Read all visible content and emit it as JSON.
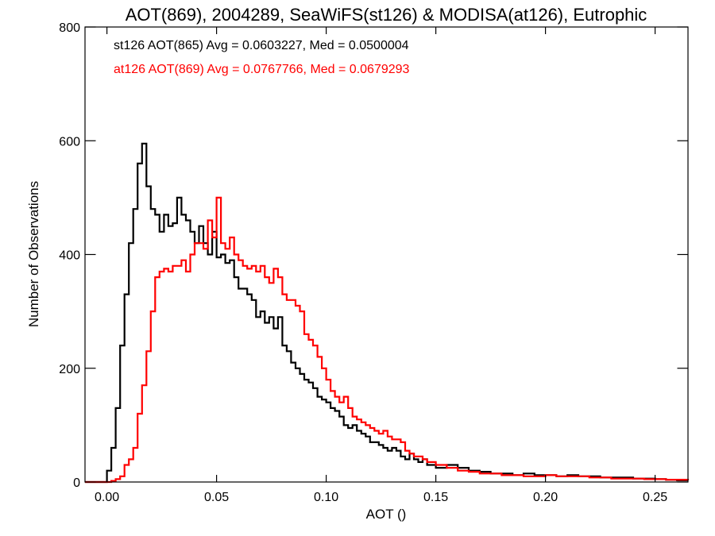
{
  "chart_data": {
    "type": "line",
    "title": "AOT(869), 2004289, SeaWiFS(st126) & MODISA(at126), Eutrophic",
    "xlabel": "AOT ()",
    "ylabel": "Number of Observations",
    "xlim": [
      -0.01,
      0.265
    ],
    "ylim": [
      0,
      800
    ],
    "x_ticks": [
      0.0,
      0.05,
      0.1,
      0.15,
      0.2,
      0.25
    ],
    "x_tick_labels": [
      "0.00",
      "0.05",
      "0.10",
      "0.15",
      "0.20",
      "0.25"
    ],
    "y_ticks": [
      0,
      200,
      400,
      600,
      800
    ],
    "y_tick_labels": [
      "0",
      "200",
      "400",
      "600",
      "800"
    ],
    "grid": false,
    "step": true,
    "annotations": [
      {
        "text": "st126 AOT(865) Avg = 0.0603227, Med = 0.0500004",
        "color": "#000000"
      },
      {
        "text": "at126 AOT(869) Avg = 0.0767766, Med = 0.0679293",
        "color": "#ff0000"
      }
    ],
    "series": [
      {
        "color": "#000000",
        "x": [
          -0.01,
          0.0,
          0.002,
          0.004,
          0.006,
          0.008,
          0.01,
          0.012,
          0.014,
          0.016,
          0.018,
          0.02,
          0.022,
          0.024,
          0.026,
          0.028,
          0.03,
          0.032,
          0.034,
          0.036,
          0.038,
          0.04,
          0.042,
          0.044,
          0.046,
          0.048,
          0.05,
          0.052,
          0.054,
          0.056,
          0.058,
          0.06,
          0.062,
          0.064,
          0.066,
          0.068,
          0.07,
          0.072,
          0.074,
          0.076,
          0.078,
          0.08,
          0.082,
          0.084,
          0.086,
          0.088,
          0.09,
          0.092,
          0.094,
          0.096,
          0.098,
          0.1,
          0.102,
          0.104,
          0.106,
          0.108,
          0.11,
          0.112,
          0.114,
          0.116,
          0.118,
          0.12,
          0.122,
          0.124,
          0.126,
          0.128,
          0.13,
          0.132,
          0.134,
          0.136,
          0.138,
          0.14,
          0.142,
          0.144,
          0.146,
          0.148,
          0.15,
          0.155,
          0.16,
          0.165,
          0.17,
          0.175,
          0.18,
          0.185,
          0.19,
          0.195,
          0.2,
          0.205,
          0.21,
          0.215,
          0.22,
          0.225,
          0.23,
          0.235,
          0.24,
          0.245,
          0.25,
          0.255,
          0.26,
          0.265
        ],
        "y": [
          0,
          20,
          60,
          130,
          240,
          330,
          420,
          480,
          560,
          595,
          520,
          480,
          470,
          440,
          470,
          450,
          455,
          500,
          470,
          460,
          440,
          420,
          450,
          420,
          400,
          440,
          395,
          400,
          385,
          390,
          360,
          340,
          340,
          330,
          320,
          290,
          300,
          280,
          290,
          270,
          290,
          240,
          230,
          210,
          200,
          190,
          180,
          175,
          165,
          150,
          145,
          140,
          130,
          125,
          115,
          100,
          95,
          100,
          90,
          85,
          80,
          70,
          70,
          65,
          60,
          55,
          60,
          55,
          45,
          40,
          50,
          40,
          35,
          40,
          30,
          30,
          25,
          30,
          25,
          20,
          18,
          15,
          15,
          12,
          15,
          12,
          12,
          10,
          12,
          10,
          10,
          8,
          8,
          8,
          6,
          6,
          5,
          4,
          3,
          3
        ]
      },
      {
        "color": "#ff0000",
        "x": [
          -0.01,
          0.0,
          0.002,
          0.004,
          0.006,
          0.008,
          0.01,
          0.012,
          0.014,
          0.016,
          0.018,
          0.02,
          0.022,
          0.024,
          0.026,
          0.028,
          0.03,
          0.032,
          0.034,
          0.036,
          0.038,
          0.04,
          0.042,
          0.044,
          0.046,
          0.048,
          0.05,
          0.052,
          0.054,
          0.056,
          0.058,
          0.06,
          0.062,
          0.064,
          0.066,
          0.068,
          0.07,
          0.072,
          0.074,
          0.076,
          0.078,
          0.08,
          0.082,
          0.084,
          0.086,
          0.088,
          0.09,
          0.092,
          0.094,
          0.096,
          0.098,
          0.1,
          0.102,
          0.104,
          0.106,
          0.108,
          0.11,
          0.112,
          0.114,
          0.116,
          0.118,
          0.12,
          0.122,
          0.124,
          0.126,
          0.128,
          0.13,
          0.132,
          0.134,
          0.136,
          0.138,
          0.14,
          0.142,
          0.144,
          0.146,
          0.148,
          0.15,
          0.155,
          0.16,
          0.165,
          0.17,
          0.175,
          0.18,
          0.185,
          0.19,
          0.195,
          0.2,
          0.205,
          0.21,
          0.215,
          0.22,
          0.225,
          0.23,
          0.235,
          0.24,
          0.245,
          0.25,
          0.255,
          0.26,
          0.265
        ],
        "y": [
          0,
          0,
          2,
          5,
          10,
          30,
          40,
          60,
          120,
          170,
          230,
          300,
          360,
          370,
          375,
          370,
          380,
          380,
          390,
          370,
          400,
          420,
          420,
          410,
          460,
          430,
          500,
          420,
          410,
          430,
          400,
          390,
          380,
          375,
          380,
          370,
          380,
          360,
          350,
          375,
          360,
          330,
          320,
          320,
          310,
          300,
          260,
          250,
          240,
          220,
          200,
          180,
          160,
          150,
          140,
          150,
          130,
          115,
          110,
          105,
          100,
          95,
          90,
          85,
          90,
          80,
          75,
          75,
          70,
          55,
          50,
          45,
          45,
          40,
          35,
          35,
          30,
          25,
          20,
          18,
          15,
          15,
          12,
          12,
          10,
          10,
          12,
          10,
          10,
          10,
          8,
          8,
          6,
          6,
          6,
          5,
          5,
          4,
          4,
          3
        ]
      }
    ]
  }
}
